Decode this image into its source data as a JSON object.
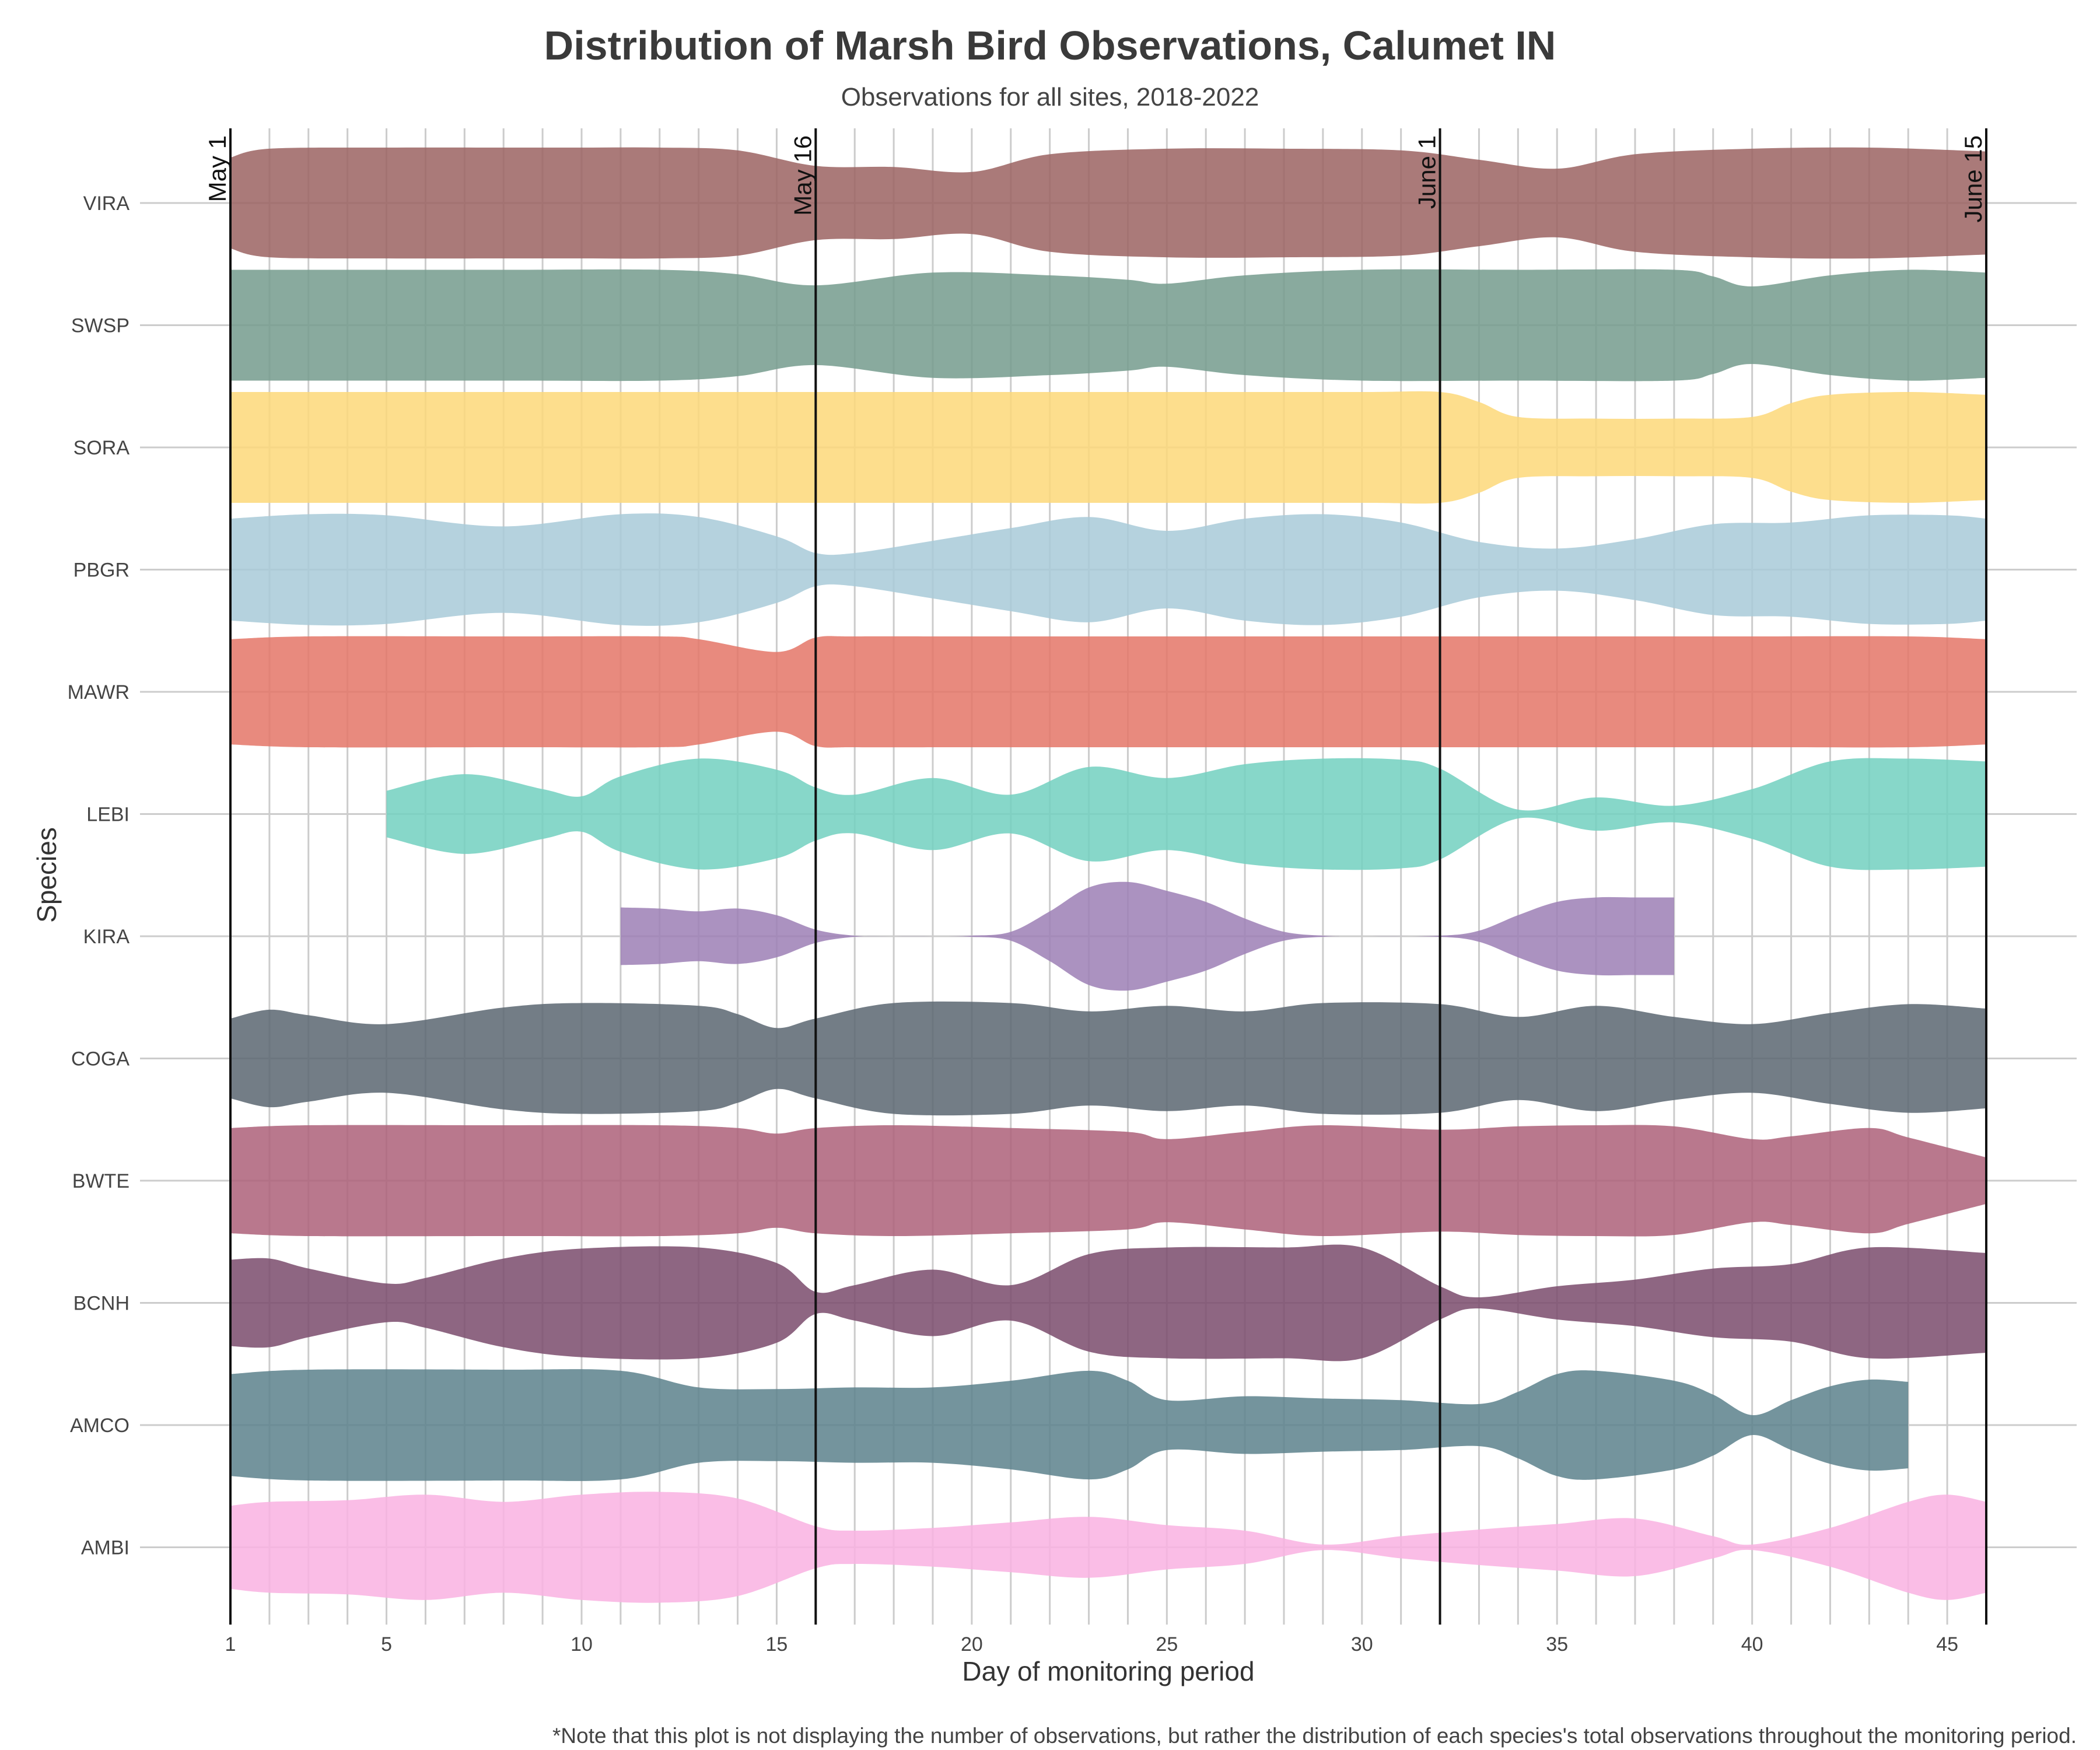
{
  "chart_data": {
    "type": "violin",
    "title": "Distribution of Marsh Bird Observations, Calumet IN",
    "subtitle": "Observations for all sites, 2018-2022",
    "xlabel": "Day of monitoring period",
    "ylabel": "Species",
    "xlim": [
      1,
      46
    ],
    "xticks": [
      1,
      5,
      10,
      15,
      20,
      25,
      30,
      35,
      40,
      45
    ],
    "grid": {
      "vertical_daily": true,
      "horizontal_per_species": true
    },
    "reference_lines": [
      {
        "x": 1,
        "label": "May 1"
      },
      {
        "x": 16,
        "label": "May 16"
      },
      {
        "x": 32,
        "label": "June 1"
      },
      {
        "x": 46,
        "label": "June 15"
      }
    ],
    "categories": [
      "VIRA",
      "SWSP",
      "SORA",
      "PBGR",
      "MAWR",
      "LEBI",
      "KIRA",
      "COGA",
      "BWTE",
      "BCNH",
      "AMCO",
      "AMBI"
    ],
    "series": [
      {
        "name": "VIRA",
        "color": "#9b6361",
        "x": [
          1,
          2,
          5,
          8,
          10,
          12,
          14,
          16,
          18,
          20,
          22,
          25,
          28,
          31,
          33,
          35,
          37,
          40,
          43,
          46
        ],
        "width": [
          0.82,
          0.98,
          1.0,
          1.0,
          1.0,
          1.0,
          0.95,
          0.67,
          0.65,
          0.56,
          0.88,
          0.98,
          0.98,
          0.95,
          0.78,
          0.62,
          0.88,
          0.98,
          1.0,
          0.93
        ]
      },
      {
        "name": "SWSP",
        "color": "#749b8d",
        "x": [
          1,
          3,
          8,
          12,
          14,
          16,
          19,
          22,
          24,
          25,
          27,
          30,
          34,
          38,
          39,
          40,
          42,
          44,
          46
        ],
        "width": [
          1.0,
          1.0,
          1.0,
          1.0,
          0.92,
          0.72,
          0.95,
          0.9,
          0.82,
          0.75,
          0.9,
          1.0,
          1.0,
          1.0,
          0.88,
          0.7,
          0.9,
          1.0,
          0.95
        ]
      },
      {
        "name": "SORA",
        "color": "#fdd879",
        "x": [
          1,
          5,
          10,
          15,
          20,
          25,
          30,
          32,
          33,
          34,
          36,
          38,
          40,
          41,
          42,
          44,
          46
        ],
        "width": [
          1.0,
          1.0,
          1.0,
          1.0,
          1.0,
          1.0,
          1.0,
          1.0,
          0.82,
          0.55,
          0.52,
          0.52,
          0.55,
          0.8,
          0.95,
          1.0,
          0.95
        ]
      },
      {
        "name": "PBGR",
        "color": "#a8cad8",
        "x": [
          1,
          3,
          5,
          8,
          11,
          13,
          15,
          16,
          17,
          19,
          21,
          23,
          25,
          27,
          29,
          31,
          33,
          35,
          37,
          39,
          41,
          43,
          45,
          46
        ],
        "width": [
          0.92,
          1.0,
          0.98,
          0.78,
          1.0,
          0.95,
          0.6,
          0.3,
          0.3,
          0.52,
          0.75,
          0.95,
          0.7,
          0.92,
          1.0,
          0.85,
          0.5,
          0.38,
          0.55,
          0.82,
          0.85,
          0.98,
          0.98,
          0.92
        ]
      },
      {
        "name": "MAWR",
        "color": "#e47567",
        "x": [
          1,
          3,
          8,
          12,
          13,
          15,
          16,
          17,
          20,
          25,
          30,
          35,
          40,
          44,
          46
        ],
        "width": [
          0.95,
          1.0,
          1.0,
          1.0,
          0.95,
          0.72,
          0.98,
          1.0,
          1.0,
          1.0,
          1.0,
          1.0,
          1.0,
          1.0,
          0.95
        ]
      },
      {
        "name": "LEBI",
        "color": "#72d0c0",
        "x": [
          5,
          7,
          9,
          10,
          11,
          13,
          15,
          16,
          17,
          19,
          21,
          23,
          25,
          27,
          29,
          31,
          32,
          34,
          36,
          38,
          40,
          42,
          44,
          46
        ],
        "width": [
          0.42,
          0.72,
          0.45,
          0.32,
          0.68,
          1.0,
          0.8,
          0.48,
          0.35,
          0.65,
          0.35,
          0.85,
          0.65,
          0.9,
          1.0,
          0.98,
          0.82,
          0.08,
          0.3,
          0.15,
          0.45,
          0.95,
          1.0,
          0.95
        ]
      },
      {
        "name": "KIRA",
        "color": "#9c7fb5",
        "x": [
          11,
          12,
          13,
          14,
          15,
          16,
          17,
          18,
          19,
          20,
          21,
          22,
          23,
          24,
          25,
          26,
          27,
          28,
          29,
          30,
          32,
          33,
          34,
          35,
          36,
          37,
          38
        ],
        "width": [
          0.52,
          0.5,
          0.45,
          0.5,
          0.38,
          0.12,
          0.01,
          0.0,
          0.0,
          0.01,
          0.08,
          0.45,
          0.88,
          0.98,
          0.82,
          0.62,
          0.32,
          0.08,
          0.01,
          0.0,
          0.01,
          0.1,
          0.38,
          0.62,
          0.7,
          0.7,
          0.7
        ]
      },
      {
        "name": "COGA",
        "color": "#5b6671",
        "x": [
          1,
          2,
          3,
          5,
          8,
          10,
          13,
          14,
          15,
          16,
          18,
          21,
          23,
          25,
          27,
          29,
          32,
          34,
          36,
          38,
          40,
          42,
          44,
          46
        ],
        "width": [
          0.72,
          0.88,
          0.78,
          0.62,
          0.92,
          1.0,
          0.95,
          0.8,
          0.55,
          0.72,
          1.0,
          1.0,
          0.85,
          0.95,
          0.85,
          1.0,
          0.98,
          0.75,
          0.95,
          0.75,
          0.62,
          0.82,
          0.98,
          0.9
        ]
      },
      {
        "name": "BWTE",
        "color": "#ad6079",
        "x": [
          1,
          3,
          8,
          12,
          14,
          15,
          16,
          18,
          21,
          24,
          25,
          27,
          29,
          32,
          34,
          36,
          38,
          40,
          41,
          43,
          44,
          46
        ],
        "width": [
          0.95,
          1.0,
          1.0,
          1.0,
          0.95,
          0.85,
          0.95,
          1.0,
          0.95,
          0.88,
          0.75,
          0.88,
          1.0,
          0.92,
          0.98,
          1.0,
          0.98,
          0.75,
          0.8,
          0.95,
          0.78,
          0.42
        ]
      },
      {
        "name": "BCNH",
        "color": "#7a4b6c",
        "x": [
          1,
          2,
          3,
          5,
          6,
          8,
          10,
          13,
          15,
          16,
          17,
          19,
          21,
          23,
          25,
          28,
          30,
          32,
          33,
          35,
          37,
          39,
          41,
          43,
          46
        ],
        "width": [
          0.78,
          0.8,
          0.62,
          0.35,
          0.45,
          0.8,
          0.98,
          1.0,
          0.72,
          0.2,
          0.32,
          0.6,
          0.32,
          0.88,
          1.0,
          1.0,
          1.0,
          0.3,
          0.1,
          0.3,
          0.42,
          0.62,
          0.7,
          1.0,
          0.9
        ]
      },
      {
        "name": "AMCO",
        "color": "#5c818c",
        "x": [
          1,
          3,
          8,
          11,
          13,
          15,
          17,
          19,
          21,
          23,
          24,
          25,
          27,
          29,
          31,
          33,
          34,
          35,
          36,
          38,
          39,
          40,
          41,
          42,
          43,
          44
        ],
        "width": [
          0.92,
          1.0,
          1.0,
          0.98,
          0.68,
          0.65,
          0.68,
          0.68,
          0.8,
          0.98,
          0.8,
          0.45,
          0.52,
          0.48,
          0.45,
          0.38,
          0.6,
          0.92,
          0.98,
          0.8,
          0.55,
          0.18,
          0.45,
          0.7,
          0.82,
          0.78
        ]
      },
      {
        "name": "AMBI",
        "color": "#f9b2e2",
        "x": [
          1,
          2,
          4,
          6,
          8,
          10,
          12,
          14,
          16,
          17,
          19,
          21,
          23,
          25,
          27,
          29,
          31,
          33,
          35,
          37,
          39,
          40,
          42,
          44,
          45,
          46
        ],
        "width": [
          0.75,
          0.82,
          0.85,
          0.95,
          0.82,
          0.95,
          1.0,
          0.88,
          0.38,
          0.3,
          0.35,
          0.45,
          0.55,
          0.4,
          0.3,
          0.05,
          0.2,
          0.32,
          0.42,
          0.52,
          0.2,
          0.05,
          0.35,
          0.82,
          0.95,
          0.82
        ]
      }
    ],
    "legend": "none",
    "annotation": "*Note that this plot is not displaying the number of observations, but rather the distribution of each species's total observations throughout the monitoring period."
  }
}
